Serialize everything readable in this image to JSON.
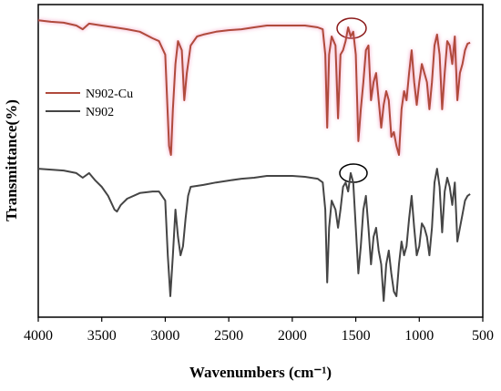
{
  "chart_data": {
    "type": "line",
    "xlabel": "Wavenumbers (cm⁻¹)",
    "ylabel": "Transmittance(%)",
    "xlim": [
      4000,
      500
    ],
    "xticks": [
      4000,
      3500,
      3000,
      2500,
      2000,
      1500,
      1000,
      500
    ],
    "ylim": [
      0,
      100
    ],
    "legend": "upper left",
    "series": [
      {
        "name": "N902-Cu",
        "color": "#b04a3c",
        "x": [
          4000,
          3900,
          3800,
          3700,
          3650,
          3600,
          3500,
          3400,
          3300,
          3200,
          3100,
          3050,
          3000,
          2970,
          2955,
          2940,
          2920,
          2900,
          2870,
          2850,
          2830,
          2800,
          2750,
          2700,
          2600,
          2500,
          2400,
          2300,
          2200,
          2100,
          2000,
          1900,
          1800,
          1760,
          1740,
          1725,
          1710,
          1690,
          1660,
          1640,
          1620,
          1600,
          1580,
          1560,
          1540,
          1520,
          1500,
          1480,
          1460,
          1440,
          1420,
          1400,
          1380,
          1360,
          1340,
          1320,
          1300,
          1280,
          1260,
          1240,
          1220,
          1200,
          1180,
          1160,
          1140,
          1120,
          1100,
          1080,
          1060,
          1040,
          1020,
          1000,
          980,
          960,
          940,
          920,
          900,
          880,
          860,
          840,
          820,
          800,
          780,
          760,
          740,
          720,
          700,
          680,
          660,
          640,
          620,
          600
        ],
        "values": [
          95.0,
          94.5,
          94.2,
          93.3,
          92.1,
          93.9,
          93.3,
          92.7,
          92.1,
          91.3,
          89.2,
          88.3,
          84.0,
          54.8,
          51.9,
          66.5,
          81.0,
          88.3,
          85.4,
          69.4,
          78.1,
          86.9,
          89.8,
          90.4,
          91.3,
          91.8,
          92.1,
          92.7,
          93.3,
          93.3,
          93.3,
          93.3,
          92.7,
          92.1,
          84.0,
          60.6,
          84.0,
          89.8,
          86.9,
          63.6,
          84.0,
          85.4,
          88.3,
          92.7,
          89.8,
          91.3,
          84.0,
          56.3,
          66.5,
          75.2,
          85.4,
          86.9,
          69.4,
          75.2,
          78.1,
          69.4,
          60.6,
          67.9,
          72.3,
          69.4,
          57.7,
          59.2,
          54.8,
          51.9,
          66.5,
          72.3,
          69.4,
          78.1,
          85.4,
          75.2,
          67.9,
          75.2,
          81.0,
          78.1,
          75.2,
          66.5,
          75.2,
          86.9,
          90.4,
          84.0,
          66.5,
          78.1,
          88.3,
          86.9,
          81.0,
          89.8,
          69.4,
          78.1,
          81.0,
          85.4,
          87.5,
          87.8
        ]
      },
      {
        "name": "N902",
        "color": "#454545",
        "x": [
          4000,
          3900,
          3800,
          3700,
          3650,
          3600,
          3550,
          3500,
          3450,
          3400,
          3380,
          3350,
          3300,
          3200,
          3100,
          3050,
          3000,
          2980,
          2960,
          2940,
          2920,
          2900,
          2880,
          2860,
          2840,
          2820,
          2800,
          2700,
          2600,
          2500,
          2400,
          2300,
          2200,
          2100,
          2000,
          1900,
          1800,
          1760,
          1740,
          1725,
          1710,
          1690,
          1660,
          1640,
          1620,
          1600,
          1580,
          1560,
          1540,
          1520,
          1500,
          1480,
          1460,
          1440,
          1420,
          1400,
          1380,
          1360,
          1340,
          1320,
          1300,
          1280,
          1260,
          1240,
          1220,
          1200,
          1180,
          1160,
          1140,
          1120,
          1100,
          1080,
          1060,
          1040,
          1020,
          1000,
          980,
          960,
          940,
          920,
          900,
          880,
          860,
          840,
          820,
          800,
          780,
          760,
          740,
          720,
          700,
          680,
          660,
          640,
          620,
          600
        ],
        "values": [
          47.5,
          47.2,
          46.9,
          46.1,
          44.6,
          46.1,
          43.7,
          41.7,
          38.8,
          34.4,
          33.8,
          35.9,
          37.9,
          39.7,
          40.2,
          40.2,
          37.3,
          19.8,
          6.7,
          19.8,
          34.4,
          25.7,
          19.8,
          22.7,
          31.5,
          38.8,
          41.7,
          42.3,
          43.1,
          43.7,
          44.3,
          44.6,
          45.2,
          45.2,
          45.2,
          44.9,
          44.3,
          43.1,
          34.4,
          11.1,
          28.6,
          37.3,
          34.4,
          28.6,
          34.4,
          41.7,
          43.1,
          40.2,
          46.1,
          43.1,
          28.6,
          14.0,
          22.7,
          34.4,
          38.8,
          28.6,
          16.9,
          25.7,
          28.6,
          21.3,
          16.9,
          5.2,
          16.9,
          21.3,
          14.0,
          8.2,
          6.7,
          16.9,
          24.2,
          19.8,
          22.7,
          31.5,
          38.8,
          28.6,
          19.8,
          22.7,
          30.0,
          28.6,
          25.7,
          19.8,
          28.6,
          43.1,
          47.5,
          41.7,
          27.1,
          40.2,
          44.6,
          41.7,
          35.9,
          43.1,
          24.2,
          28.6,
          32.9,
          37.3,
          38.8,
          39.4
        ]
      }
    ]
  }
}
